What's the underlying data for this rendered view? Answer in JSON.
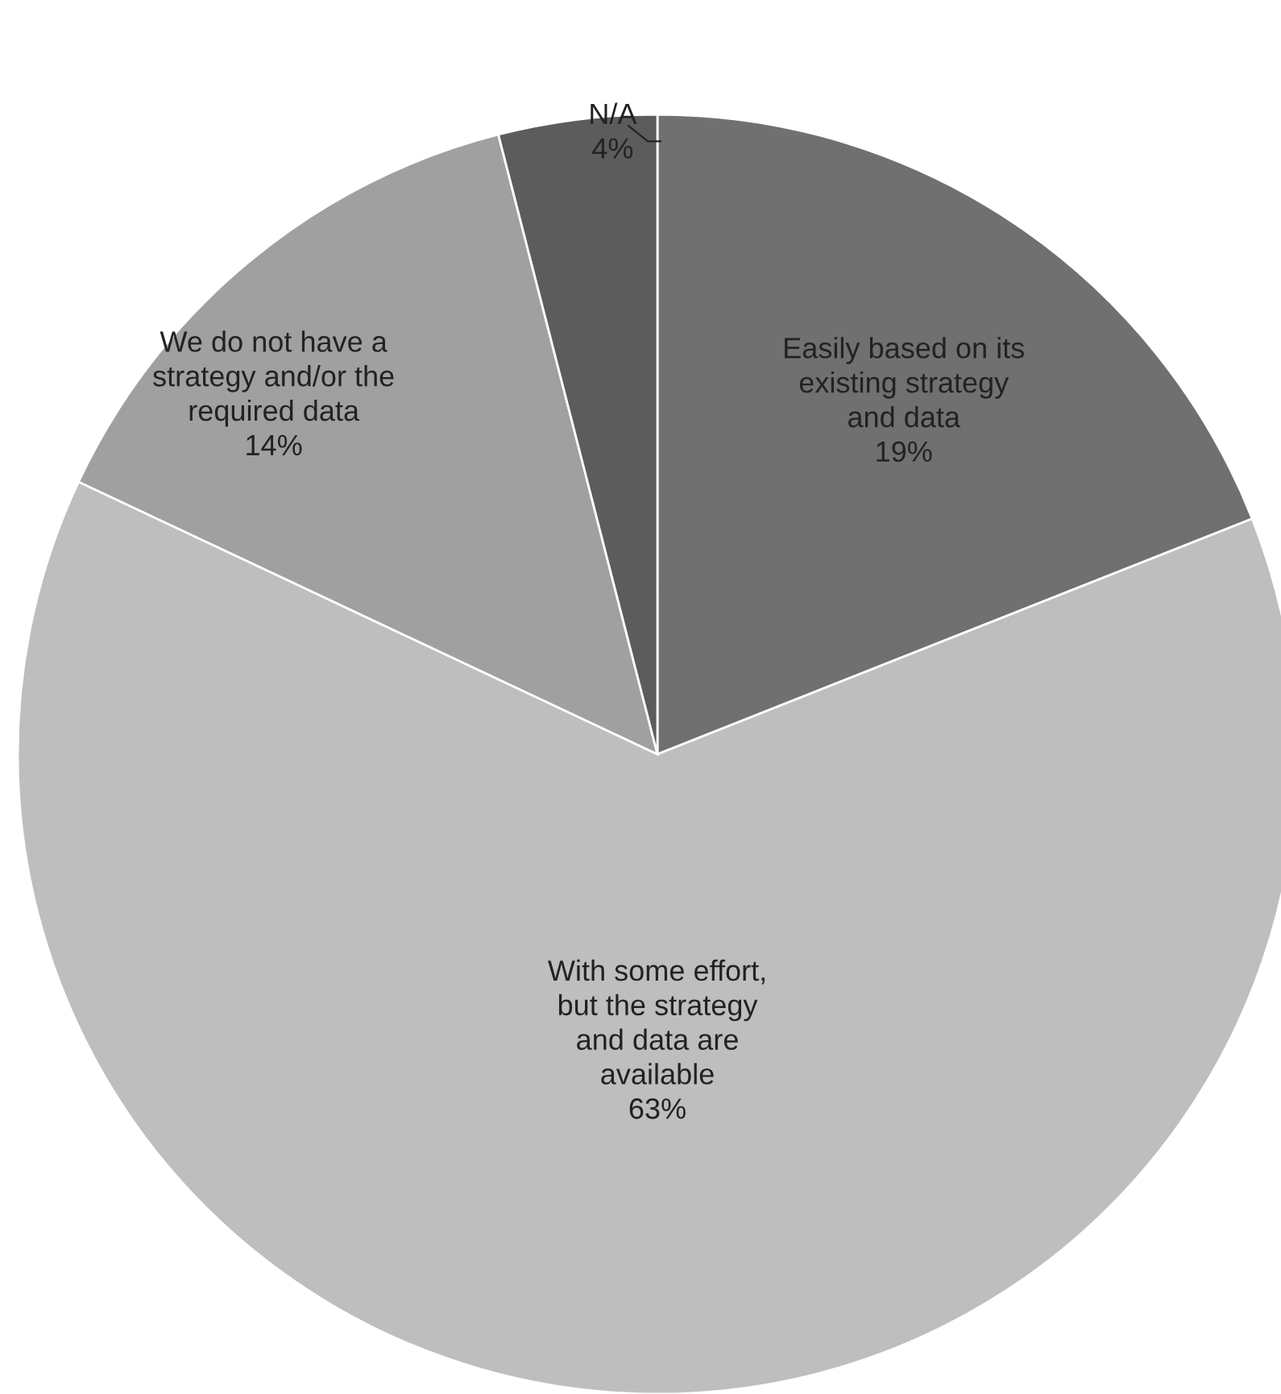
{
  "chart_data": {
    "type": "pie",
    "categories": [
      "Easily based on its existing strategy and data",
      "With some effort, but the strategy and data are available",
      "We do not have a strategy and/or the required data",
      "N/A"
    ],
    "values": [
      19,
      63,
      14,
      4
    ],
    "colors": [
      "#707070",
      "#bebebe",
      "#a0a0a0",
      "#5c5c5c"
    ],
    "value_labels": [
      "19%",
      "63%",
      "14%",
      "4%"
    ]
  }
}
